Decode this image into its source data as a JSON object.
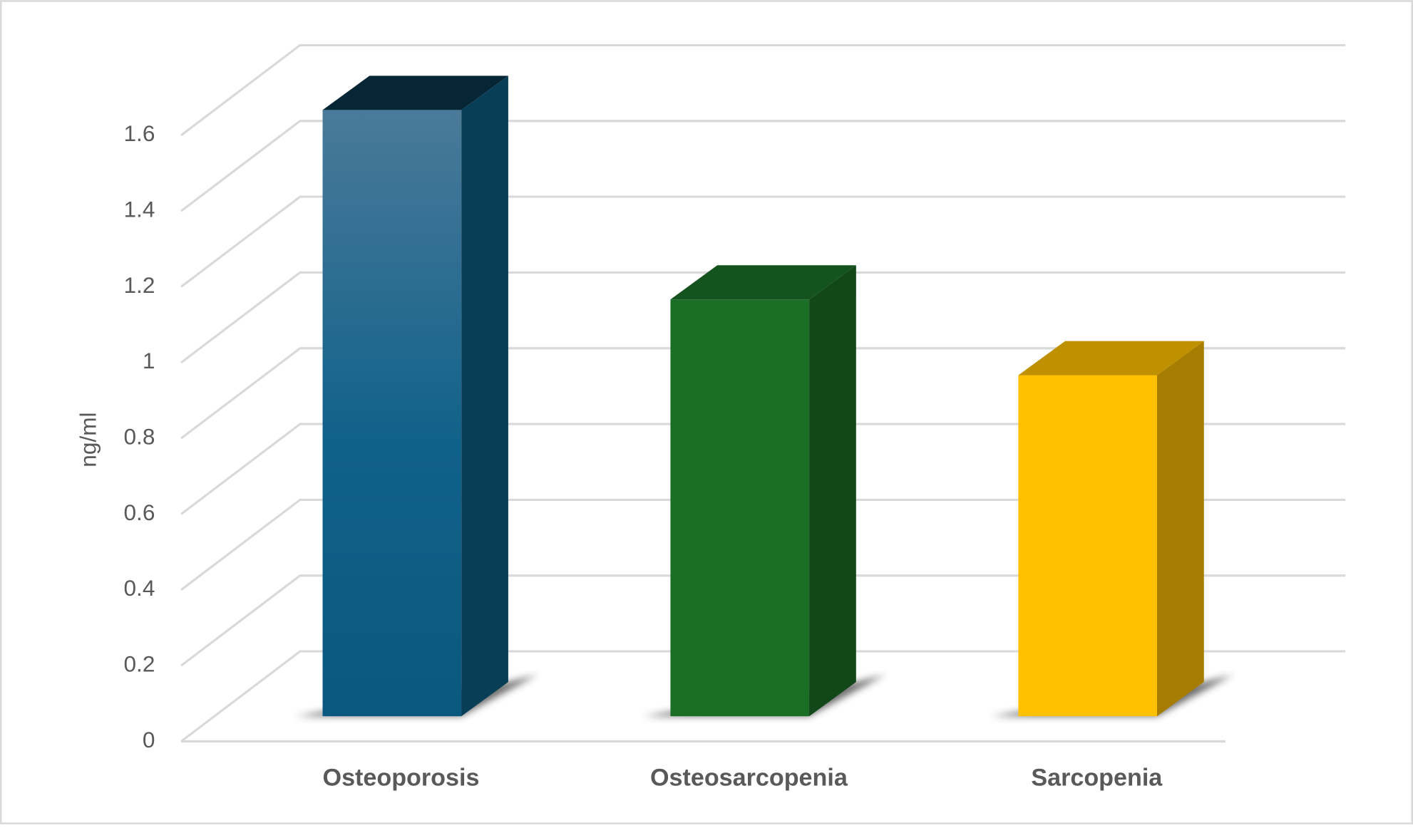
{
  "chart_data": {
    "type": "bar3d",
    "y_axis_label": "ng/ml",
    "categories": [
      "Osteoporosis",
      "Osteosarcopenia",
      "Sarcopenia"
    ],
    "values": [
      1.6,
      1.1,
      0.9
    ],
    "colors": [
      "#0e5f86",
      "#1b6e26",
      "#ffc000"
    ],
    "ylim": [
      0,
      1.6
    ],
    "yticks": [
      0,
      0.2,
      0.4,
      0.6,
      0.8,
      1,
      1.2,
      1.4,
      1.6
    ],
    "grid": true
  }
}
